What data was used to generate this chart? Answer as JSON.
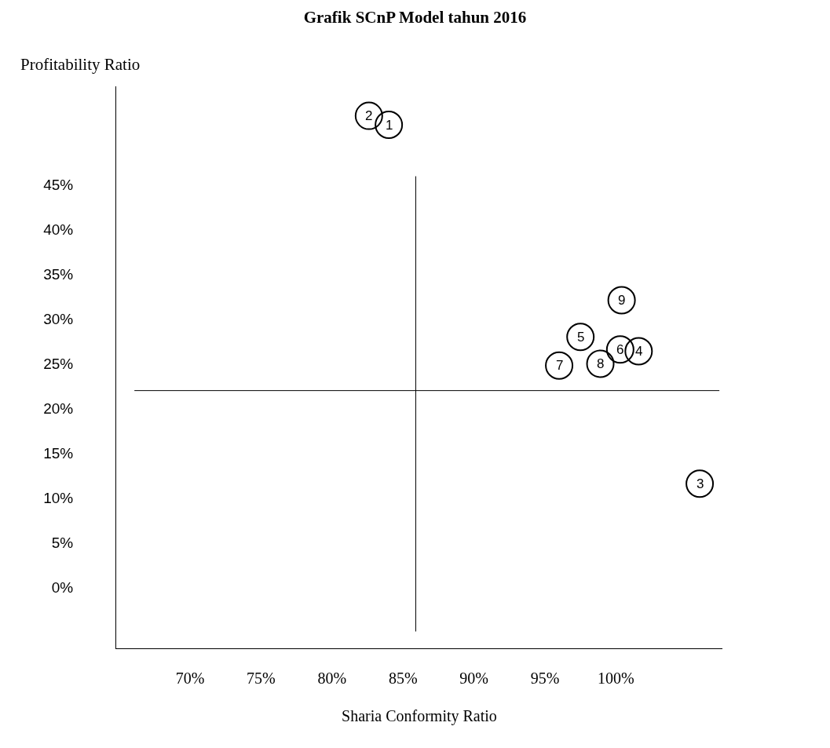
{
  "chart_data": {
    "type": "scatter",
    "title": "Grafik SCnP Model tahun 2016",
    "xlabel": "Sharia Conformity Ratio",
    "ylabel": "Profitability Ratio",
    "x": [
      84.0,
      82.6,
      105.9,
      101.6,
      97.5,
      100.3,
      96.0,
      98.9,
      100.4
    ],
    "values": [
      51.7,
      52.7,
      11.6,
      26.4,
      28.0,
      26.6,
      24.8,
      25.0,
      32.1
    ],
    "annotations": [
      {
        "text": "1",
        "x": 84.0,
        "y": 51.7
      },
      {
        "text": "2",
        "x": 82.6,
        "y": 52.7
      },
      {
        "text": "3",
        "x": 105.9,
        "y": 11.6
      },
      {
        "text": "4",
        "x": 101.6,
        "y": 26.4
      },
      {
        "text": "5",
        "x": 97.5,
        "y": 28.0
      },
      {
        "text": "6",
        "x": 100.3,
        "y": 26.6
      },
      {
        "text": "7",
        "x": 96.0,
        "y": 24.8
      },
      {
        "text": "8",
        "x": 98.9,
        "y": 25.0
      },
      {
        "text": "9",
        "x": 100.4,
        "y": 32.1
      }
    ],
    "color": "#000000",
    "marker": "circle",
    "xlim": [
      64.8,
      107.5
    ],
    "ylim": [
      -6.8,
      56
    ],
    "xticks": [
      {
        "value": 70,
        "label": "70%"
      },
      {
        "value": 75,
        "label": "75%"
      },
      {
        "value": 80,
        "label": "80%"
      },
      {
        "value": 85,
        "label": "85%"
      },
      {
        "value": 90,
        "label": "90%"
      },
      {
        "value": 95,
        "label": "95%"
      },
      {
        "value": 100,
        "label": "100%"
      }
    ],
    "yticks": [
      {
        "value": 0,
        "label": "0%"
      },
      {
        "value": 5,
        "label": "5%"
      },
      {
        "value": 10,
        "label": "10%"
      },
      {
        "value": 15,
        "label": "15%"
      },
      {
        "value": 20,
        "label": "20%"
      },
      {
        "value": 25,
        "label": "25%"
      },
      {
        "value": 30,
        "label": "30%"
      },
      {
        "value": 35,
        "label": "35%"
      },
      {
        "value": 40,
        "label": "40%"
      },
      {
        "value": 45,
        "label": "45%"
      }
    ],
    "ref_lines": [
      {
        "axis": "x",
        "value": 85.9,
        "color": "#000000"
      },
      {
        "axis": "y",
        "value": 22.0,
        "color": "#000000"
      }
    ]
  }
}
